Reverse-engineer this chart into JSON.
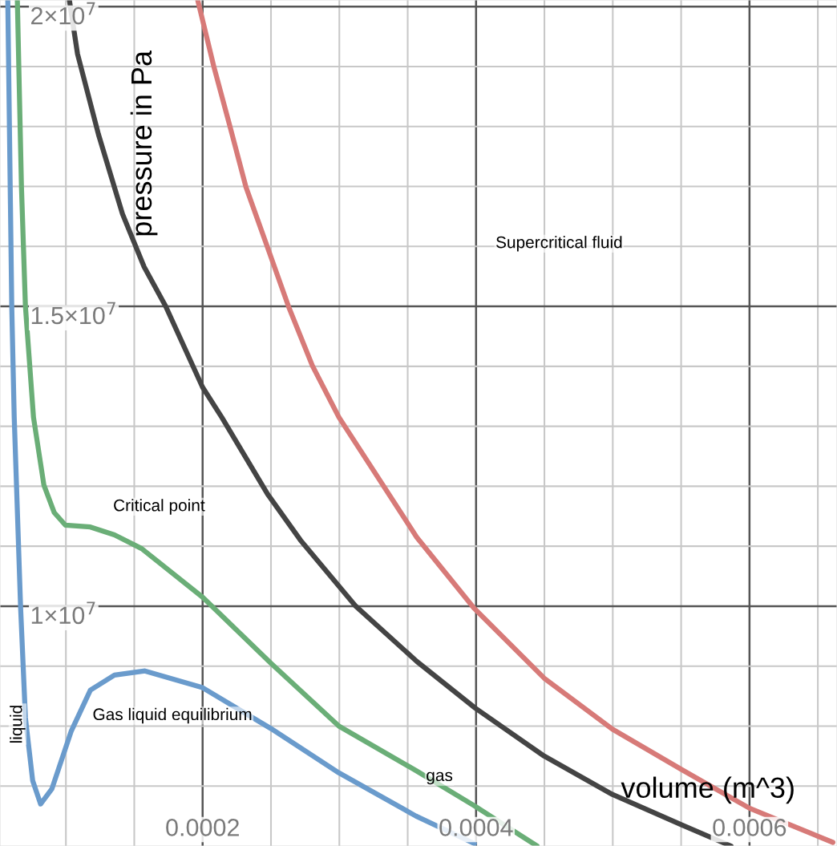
{
  "chart_data": {
    "type": "line",
    "xlabel": "volume (m^3)",
    "ylabel": "pressure in Pa",
    "xlim": [
      5.18e-05,
      0.000664
    ],
    "ylim": [
      6000000,
      20110000
    ],
    "xticks": [
      {
        "value": 0.0001,
        "label": null
      },
      {
        "value": 0.00015,
        "label": null
      },
      0.0002,
      {
        "value": 0.00025,
        "label": null
      },
      {
        "value": 0.0003,
        "label": null
      },
      {
        "value": 0.00035,
        "label": null
      },
      0.0004,
      {
        "value": 0.00045,
        "label": null
      },
      {
        "value": 0.0005,
        "label": null
      },
      {
        "value": 0.00055,
        "label": null
      },
      0.0006,
      {
        "value": 0.00065,
        "label": null
      }
    ],
    "yticks": [
      {
        "value": 7000000,
        "label": null
      },
      {
        "value": 8000000,
        "label": null
      },
      {
        "value": 9000000,
        "label": null
      },
      {
        "value": 10000000,
        "label": "1×10$^{7}$"
      },
      {
        "value": 11000000,
        "label": null
      },
      {
        "value": 12000000,
        "label": null
      },
      {
        "value": 13000000,
        "label": null
      },
      {
        "value": 14000000,
        "label": null
      },
      {
        "value": 15000000,
        "label": "1.5×10$^{7}$"
      },
      {
        "value": 16000000,
        "label": null
      },
      {
        "value": 17000000,
        "label": null
      },
      {
        "value": 18000000,
        "label": null
      },
      {
        "value": 19000000,
        "label": null
      },
      {
        "value": 20000000,
        "label": "2×10$^{7}$"
      }
    ],
    "grid": true,
    "marker": "none",
    "line_style": "solid",
    "series": [
      {
        "color": "#6a9bcc",
        "x": [
          5.75e-05,
          6.04e-05,
          6.22e-05,
          6.69e-05,
          7.04e-05,
          7.57e-05,
          8.15e-05,
          8.97e-05,
          0.0001038,
          0.0001179,
          0.0001355,
          0.0001578,
          0.0002,
          0.0002499,
          0.0002997,
          0.000356,
          0.0003988
        ],
        "values": [
          20100000,
          15000000,
          13150000,
          9960000,
          8140000,
          7090000,
          6700000,
          6950000,
          7910000,
          8600000,
          8850000,
          8920000,
          8640000,
          7960000,
          7220000,
          6500000,
          6040000
        ]
      },
      {
        "color": "#6aae77",
        "x": [
          6.45e-05,
          6.75e-05,
          7.04e-05,
          7.63e-05,
          8.39e-05,
          9.15e-05,
          9.97e-05,
          0.0001179,
          0.0001355,
          0.0001554,
          0.0002,
          0.0002499,
          0.0002997,
          0.0003566,
          0.0003988,
          0.0004446
        ],
        "values": [
          20100000,
          16990000,
          15000000,
          13150000,
          12020000,
          11560000,
          11350000,
          11320000,
          11190000,
          10960000,
          10150000,
          9050000,
          8000000,
          7250000,
          6670000,
          6000000
        ]
      },
      {
        "color": "#444444",
        "x": [
          0.0001026,
          0.0001085,
          0.0001238,
          0.0001414,
          0.0001572,
          0.000173,
          0.0002,
          0.000214,
          0.0002475,
          0.0002716,
          0.000312,
          0.0003566,
          0.0003994,
          0.0004498,
          0.0004997,
          0.0005507,
          0.0005865
        ],
        "values": [
          20100000,
          19210000,
          17870000,
          16540000,
          15660000,
          15000000,
          13650000,
          13150000,
          11870000,
          11100000,
          10000000,
          9080000,
          8300000,
          7500000,
          6860000,
          6350000,
          6000000
        ]
      },
      {
        "color": "#d77a78",
        "x": [
          0.0001965,
          0.0002082,
          0.0002199,
          0.0002317,
          0.0002469,
          0.0002628,
          0.0002803,
          0.0002997,
          0.0003566,
          0.0003988,
          0.0004498,
          0.0004997,
          0.0005507,
          0.0006,
          0.000661
        ],
        "values": [
          20100000,
          19000000,
          18010000,
          16990000,
          16020000,
          15000000,
          14010000,
          13150000,
          11150000,
          9960000,
          8800000,
          7950000,
          7270000,
          6630000,
          6060000
        ]
      }
    ],
    "annotations": [
      "Supercritical fluid",
      "Critical point",
      "Gas liquid equilibrium",
      "liquid",
      "gas"
    ]
  }
}
